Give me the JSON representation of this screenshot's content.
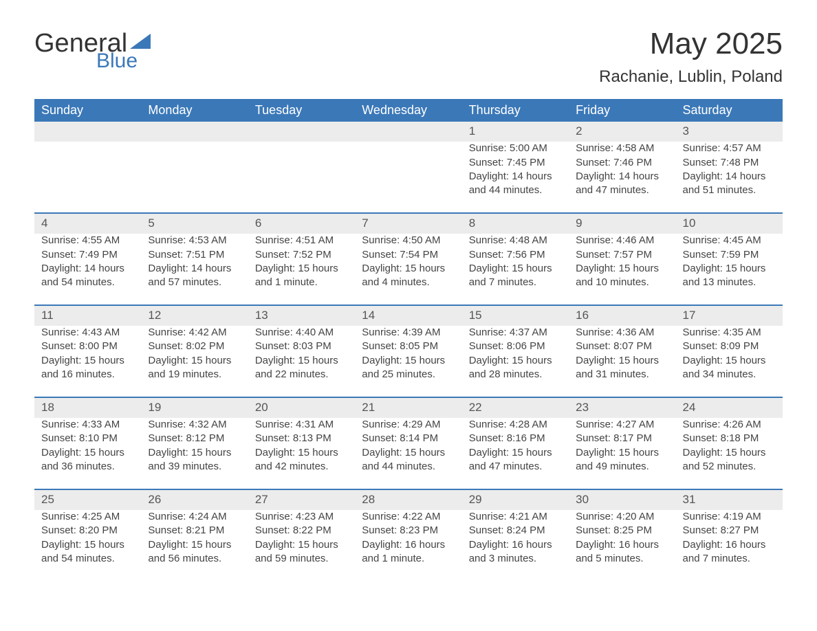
{
  "brand": {
    "general": "General",
    "blue": "Blue",
    "icon_color": "#3b78b8"
  },
  "title": "May 2025",
  "location": "Rachanie, Lublin, Poland",
  "theme": {
    "header_bg": "#3b78b8",
    "header_text": "#ffffff",
    "daynum_bg": "#ececec",
    "daynum_text": "#555555",
    "body_text": "#444444",
    "page_bg": "#ffffff"
  },
  "day_headers": [
    "Sunday",
    "Monday",
    "Tuesday",
    "Wednesday",
    "Thursday",
    "Friday",
    "Saturday"
  ],
  "weeks": [
    [
      null,
      null,
      null,
      null,
      {
        "n": "1",
        "sr": "Sunrise: 5:00 AM",
        "ss": "Sunset: 7:45 PM",
        "dl": "Daylight: 14 hours and 44 minutes."
      },
      {
        "n": "2",
        "sr": "Sunrise: 4:58 AM",
        "ss": "Sunset: 7:46 PM",
        "dl": "Daylight: 14 hours and 47 minutes."
      },
      {
        "n": "3",
        "sr": "Sunrise: 4:57 AM",
        "ss": "Sunset: 7:48 PM",
        "dl": "Daylight: 14 hours and 51 minutes."
      }
    ],
    [
      {
        "n": "4",
        "sr": "Sunrise: 4:55 AM",
        "ss": "Sunset: 7:49 PM",
        "dl": "Daylight: 14 hours and 54 minutes."
      },
      {
        "n": "5",
        "sr": "Sunrise: 4:53 AM",
        "ss": "Sunset: 7:51 PM",
        "dl": "Daylight: 14 hours and 57 minutes."
      },
      {
        "n": "6",
        "sr": "Sunrise: 4:51 AM",
        "ss": "Sunset: 7:52 PM",
        "dl": "Daylight: 15 hours and 1 minute."
      },
      {
        "n": "7",
        "sr": "Sunrise: 4:50 AM",
        "ss": "Sunset: 7:54 PM",
        "dl": "Daylight: 15 hours and 4 minutes."
      },
      {
        "n": "8",
        "sr": "Sunrise: 4:48 AM",
        "ss": "Sunset: 7:56 PM",
        "dl": "Daylight: 15 hours and 7 minutes."
      },
      {
        "n": "9",
        "sr": "Sunrise: 4:46 AM",
        "ss": "Sunset: 7:57 PM",
        "dl": "Daylight: 15 hours and 10 minutes."
      },
      {
        "n": "10",
        "sr": "Sunrise: 4:45 AM",
        "ss": "Sunset: 7:59 PM",
        "dl": "Daylight: 15 hours and 13 minutes."
      }
    ],
    [
      {
        "n": "11",
        "sr": "Sunrise: 4:43 AM",
        "ss": "Sunset: 8:00 PM",
        "dl": "Daylight: 15 hours and 16 minutes."
      },
      {
        "n": "12",
        "sr": "Sunrise: 4:42 AM",
        "ss": "Sunset: 8:02 PM",
        "dl": "Daylight: 15 hours and 19 minutes."
      },
      {
        "n": "13",
        "sr": "Sunrise: 4:40 AM",
        "ss": "Sunset: 8:03 PM",
        "dl": "Daylight: 15 hours and 22 minutes."
      },
      {
        "n": "14",
        "sr": "Sunrise: 4:39 AM",
        "ss": "Sunset: 8:05 PM",
        "dl": "Daylight: 15 hours and 25 minutes."
      },
      {
        "n": "15",
        "sr": "Sunrise: 4:37 AM",
        "ss": "Sunset: 8:06 PM",
        "dl": "Daylight: 15 hours and 28 minutes."
      },
      {
        "n": "16",
        "sr": "Sunrise: 4:36 AM",
        "ss": "Sunset: 8:07 PM",
        "dl": "Daylight: 15 hours and 31 minutes."
      },
      {
        "n": "17",
        "sr": "Sunrise: 4:35 AM",
        "ss": "Sunset: 8:09 PM",
        "dl": "Daylight: 15 hours and 34 minutes."
      }
    ],
    [
      {
        "n": "18",
        "sr": "Sunrise: 4:33 AM",
        "ss": "Sunset: 8:10 PM",
        "dl": "Daylight: 15 hours and 36 minutes."
      },
      {
        "n": "19",
        "sr": "Sunrise: 4:32 AM",
        "ss": "Sunset: 8:12 PM",
        "dl": "Daylight: 15 hours and 39 minutes."
      },
      {
        "n": "20",
        "sr": "Sunrise: 4:31 AM",
        "ss": "Sunset: 8:13 PM",
        "dl": "Daylight: 15 hours and 42 minutes."
      },
      {
        "n": "21",
        "sr": "Sunrise: 4:29 AM",
        "ss": "Sunset: 8:14 PM",
        "dl": "Daylight: 15 hours and 44 minutes."
      },
      {
        "n": "22",
        "sr": "Sunrise: 4:28 AM",
        "ss": "Sunset: 8:16 PM",
        "dl": "Daylight: 15 hours and 47 minutes."
      },
      {
        "n": "23",
        "sr": "Sunrise: 4:27 AM",
        "ss": "Sunset: 8:17 PM",
        "dl": "Daylight: 15 hours and 49 minutes."
      },
      {
        "n": "24",
        "sr": "Sunrise: 4:26 AM",
        "ss": "Sunset: 8:18 PM",
        "dl": "Daylight: 15 hours and 52 minutes."
      }
    ],
    [
      {
        "n": "25",
        "sr": "Sunrise: 4:25 AM",
        "ss": "Sunset: 8:20 PM",
        "dl": "Daylight: 15 hours and 54 minutes."
      },
      {
        "n": "26",
        "sr": "Sunrise: 4:24 AM",
        "ss": "Sunset: 8:21 PM",
        "dl": "Daylight: 15 hours and 56 minutes."
      },
      {
        "n": "27",
        "sr": "Sunrise: 4:23 AM",
        "ss": "Sunset: 8:22 PM",
        "dl": "Daylight: 15 hours and 59 minutes."
      },
      {
        "n": "28",
        "sr": "Sunrise: 4:22 AM",
        "ss": "Sunset: 8:23 PM",
        "dl": "Daylight: 16 hours and 1 minute."
      },
      {
        "n": "29",
        "sr": "Sunrise: 4:21 AM",
        "ss": "Sunset: 8:24 PM",
        "dl": "Daylight: 16 hours and 3 minutes."
      },
      {
        "n": "30",
        "sr": "Sunrise: 4:20 AM",
        "ss": "Sunset: 8:25 PM",
        "dl": "Daylight: 16 hours and 5 minutes."
      },
      {
        "n": "31",
        "sr": "Sunrise: 4:19 AM",
        "ss": "Sunset: 8:27 PM",
        "dl": "Daylight: 16 hours and 7 minutes."
      }
    ]
  ]
}
